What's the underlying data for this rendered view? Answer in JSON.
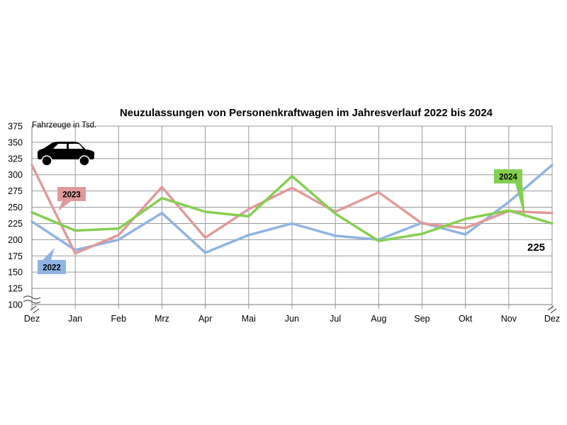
{
  "chart_data": {
    "type": "line",
    "title": "Neuzulassungen von Personenkraftwagen im Jahresverlauf 2022 bis 2024",
    "ylabel": "Fahrzeuge in Tsd.",
    "xlabel": "",
    "categories": [
      "Dez",
      "Jan",
      "Feb",
      "Mrz",
      "Apr",
      "Mai",
      "Jun",
      "Jul",
      "Aug",
      "Sep",
      "Okt",
      "Nov",
      "Dez"
    ],
    "ylim": [
      100,
      375
    ],
    "yticks": [
      375,
      350,
      325,
      300,
      275,
      250,
      225,
      200,
      175,
      150,
      125,
      100
    ],
    "axis_break": true,
    "grid": true,
    "icon": "car-icon",
    "series": [
      {
        "name": "2022",
        "color": "#8fb4e3",
        "values": [
          228,
          184,
          200,
          241,
          180,
          207,
          225,
          206,
          200,
          226,
          208,
          258,
          315
        ]
      },
      {
        "name": "2023",
        "color": "#e09a9a",
        "values": [
          315,
          179,
          207,
          281,
          203,
          247,
          280,
          243,
          273,
          225,
          218,
          244,
          241
        ]
      },
      {
        "name": "2024",
        "color": "#85cf50",
        "values": [
          242,
          214,
          217,
          264,
          243,
          236,
          298,
          240,
          198,
          209,
          232,
          245,
          225
        ]
      }
    ],
    "end_label": "225"
  }
}
